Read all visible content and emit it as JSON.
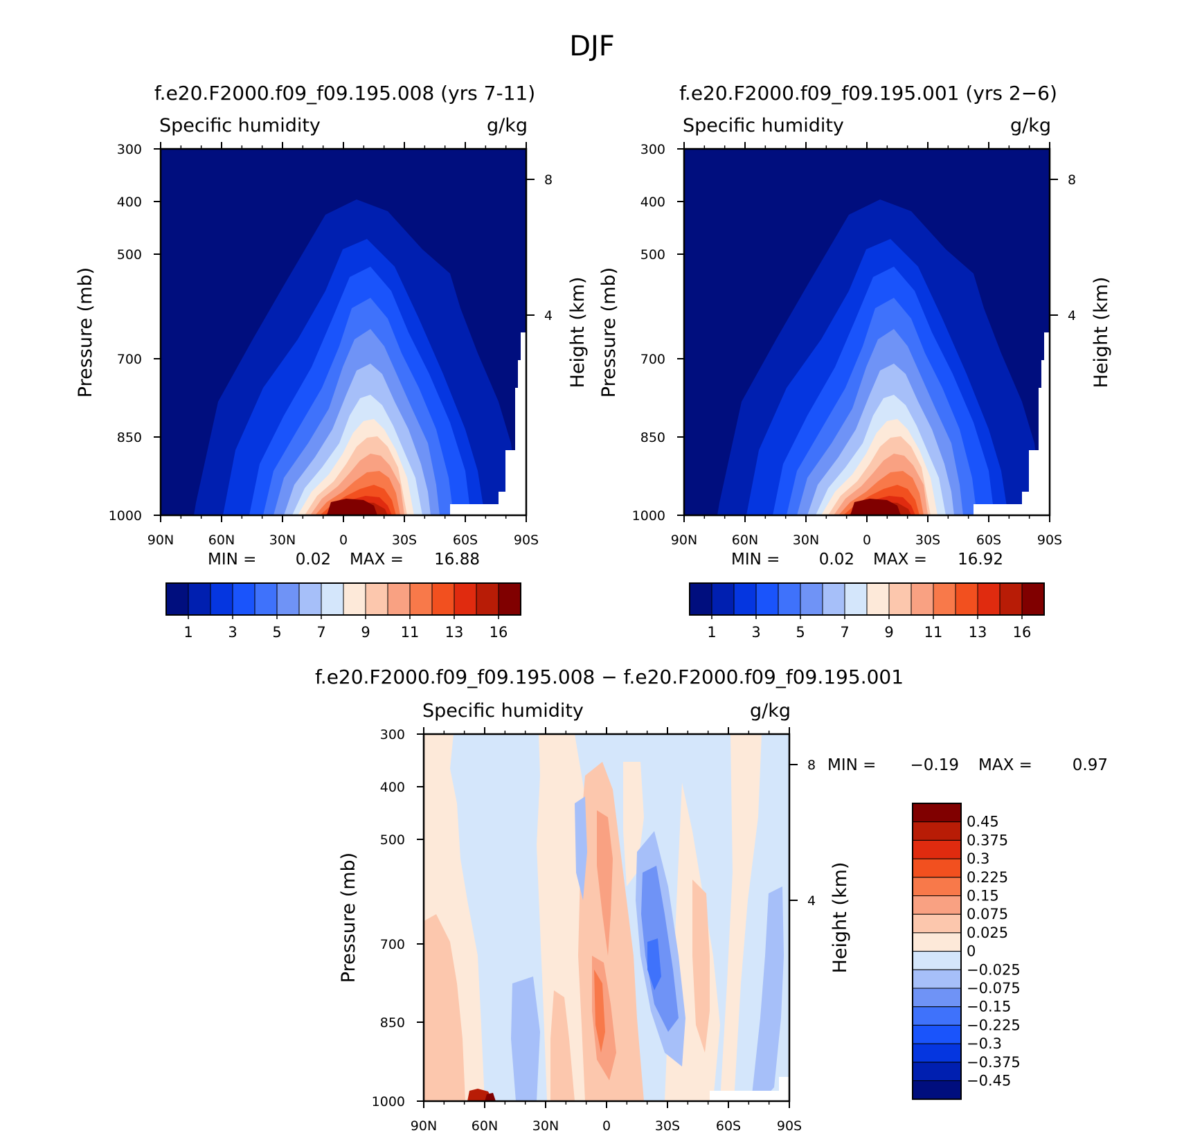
{
  "figure": {
    "title": "DJF"
  },
  "colors": {
    "abs_levels": [
      "#000e7e",
      "#001fb0",
      "#0536e0",
      "#1a54fb",
      "#3f72fb",
      "#6f93f6",
      "#a6bff9",
      "#d4e6fb",
      "#fde9d9",
      "#fcc7ad",
      "#f9a182",
      "#f8794a",
      "#f2501f",
      "#e02b0f",
      "#b81c06",
      "#800000"
    ],
    "diff_levels": [
      "#000e7e",
      "#001fb0",
      "#0536e0",
      "#1a54fb",
      "#3f72fb",
      "#6f93f6",
      "#a6bff9",
      "#d4e6fb",
      "#fde9d9",
      "#fcc7ad",
      "#f9a182",
      "#f8794a",
      "#f2501f",
      "#e02b0f",
      "#b81c06",
      "#800000"
    ]
  },
  "chart_data": [
    {
      "type": "heatmap",
      "title": "f.e20.F2000.f09_f09.195.008 (yrs 7-11)",
      "left_label": "Specific humidity",
      "right_label": "g/kg",
      "xlabel": "",
      "ylabel": "Pressure (mb)",
      "ylabel_right": "Height (km)",
      "x_ticks": [
        "90N",
        "60N",
        "30N",
        "0",
        "30S",
        "60S",
        "90S"
      ],
      "y_ticks": [
        "300",
        "400",
        "500",
        "700",
        "850",
        "1000"
      ],
      "y_right_ticks": [
        "8",
        "4"
      ],
      "min_label": "MIN =",
      "min_value": "0.02",
      "max_label": "MAX =",
      "max_value": "16.88",
      "colorbar_labels": [
        "1",
        "3",
        "5",
        "7",
        "9",
        "11",
        "13",
        "16"
      ],
      "x_range": [
        90,
        -90
      ],
      "y_range": [
        300,
        1000
      ],
      "contour_levels": [
        0.3,
        1,
        2,
        3,
        4,
        5,
        6,
        7,
        8,
        9,
        10,
        11,
        12,
        13,
        14,
        16
      ],
      "tops_by_level_mb": [
        {
          "level": 0.3,
          "top": 395
        },
        {
          "level": 1,
          "top": 450
        },
        {
          "level": 2,
          "top": 490
        },
        {
          "level": 3,
          "top": 540
        },
        {
          "level": 4,
          "top": 580
        },
        {
          "level": 5,
          "top": 620
        },
        {
          "level": 6,
          "top": 660
        },
        {
          "level": 7,
          "top": 700
        },
        {
          "level": 8,
          "top": 735
        },
        {
          "level": 9,
          "top": 770
        },
        {
          "level": 10,
          "top": 800
        },
        {
          "level": 11,
          "top": 835
        },
        {
          "level": 12,
          "top": 865
        },
        {
          "level": 13,
          "top": 895
        },
        {
          "level": 14,
          "top": 930
        },
        {
          "level": 16,
          "top": 970
        }
      ]
    },
    {
      "type": "heatmap",
      "title": "f.e20.F2000.f09_f09.195.001 (yrs 2-6)",
      "left_label": "Specific humidity",
      "right_label": "g/kg",
      "xlabel": "",
      "ylabel": "Pressure (mb)",
      "ylabel_right": "Height (km)",
      "x_ticks": [
        "90N",
        "60N",
        "30N",
        "0",
        "30S",
        "60S",
        "90S"
      ],
      "y_ticks": [
        "300",
        "400",
        "500",
        "700",
        "850",
        "1000"
      ],
      "y_right_ticks": [
        "8",
        "4"
      ],
      "min_label": "MIN =",
      "min_value": "0.02",
      "max_label": "MAX =",
      "max_value": "16.92",
      "colorbar_labels": [
        "1",
        "3",
        "5",
        "7",
        "9",
        "11",
        "13",
        "16"
      ],
      "x_range": [
        90,
        -90
      ],
      "y_range": [
        300,
        1000
      ]
    },
    {
      "type": "heatmap",
      "title": "f.e20.F2000.f09_f09.195.008 - f.e20.F2000.f09_f09.195.001",
      "left_label": "Specific humidity",
      "right_label": "g/kg",
      "xlabel": "",
      "ylabel": "Pressure (mb)",
      "ylabel_right": "Height (km)",
      "x_ticks": [
        "90N",
        "60N",
        "30N",
        "0",
        "30S",
        "60S",
        "90S"
      ],
      "y_ticks": [
        "300",
        "400",
        "500",
        "700",
        "850",
        "1000"
      ],
      "y_right_ticks": [
        "8",
        "4"
      ],
      "min_label": "MIN =",
      "min_value": "-0.19",
      "max_label": "MAX =",
      "max_value": "0.97",
      "colorbar_labels": [
        "0.45",
        "0.375",
        "0.3",
        "0.225",
        "0.15",
        "0.075",
        "0.025",
        "0",
        "-0.025",
        "-0.075",
        "-0.15",
        "-0.225",
        "-0.3",
        "-0.375",
        "-0.45"
      ],
      "x_range": [
        90,
        -90
      ],
      "y_range": [
        300,
        1000
      ]
    }
  ]
}
